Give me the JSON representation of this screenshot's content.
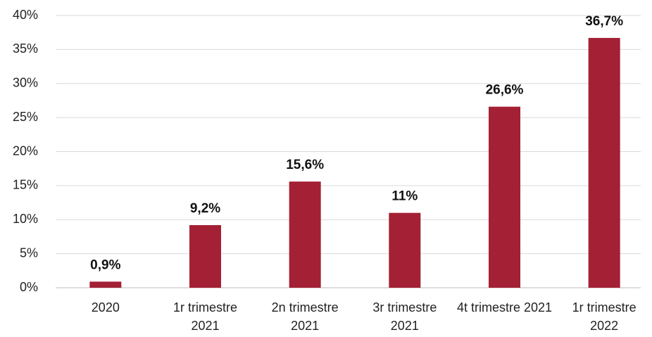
{
  "chart_data": {
    "type": "bar",
    "categories": [
      "2020",
      "1r trimestre 2021",
      "2n trimestre 2021",
      "3r trimestre 2021",
      "4t trimestre 2021",
      "1r trimestre 2022"
    ],
    "values": [
      0.9,
      9.2,
      15.6,
      11,
      26.6,
      36.7
    ],
    "value_labels": [
      "0,9%",
      "9,2%",
      "15,6%",
      "11%",
      "26,6%",
      "36,7%"
    ],
    "color": "#a32035",
    "ylim": [
      0,
      40
    ],
    "yticks": [
      {
        "value": 0,
        "label": "0%"
      },
      {
        "value": 5,
        "label": "5%"
      },
      {
        "value": 10,
        "label": "10%"
      },
      {
        "value": 15,
        "label": "15%"
      },
      {
        "value": 20,
        "label": "20%"
      },
      {
        "value": 25,
        "label": "25%"
      },
      {
        "value": 30,
        "label": "30%"
      },
      {
        "value": 35,
        "label": "35%"
      },
      {
        "value": 40,
        "label": "40%"
      }
    ],
    "grid": true
  }
}
